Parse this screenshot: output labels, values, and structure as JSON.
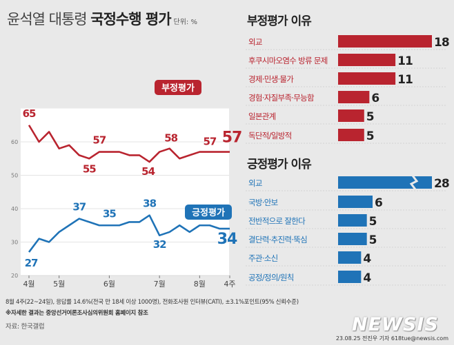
{
  "title": {
    "normal": "윤석열 대통령",
    "bold": "국정수행 평가",
    "unit": "단위: %"
  },
  "chart_data": [
    {
      "type": "line",
      "title": "윤석열 대통령 국정수행 평가",
      "unit": "단위: %",
      "ylim": [
        20,
        70
      ],
      "yticks": [
        20,
        30,
        40,
        50,
        60
      ],
      "x_tick_labels": [
        "4월",
        "5월",
        "6월",
        "7월",
        "8월",
        "4주"
      ],
      "x_tick_index": [
        0,
        3,
        8,
        13,
        17,
        20
      ],
      "series": [
        {
          "name": "부정평가",
          "color": "#b9242f",
          "values": [
            65,
            60,
            63,
            58,
            59,
            56,
            55,
            57,
            57,
            57,
            56,
            56,
            54,
            57,
            58,
            55,
            56,
            57,
            57,
            57,
            57
          ],
          "labels": [
            [
              0,
              "65"
            ],
            [
              6,
              "55"
            ],
            [
              7,
              "57"
            ],
            [
              12,
              "54"
            ],
            [
              14,
              "58"
            ],
            [
              18,
              "57"
            ],
            [
              20,
              "57"
            ]
          ]
        },
        {
          "name": "긍정평가",
          "color": "#1f73b7",
          "values": [
            27,
            31,
            30,
            33,
            35,
            37,
            36,
            35,
            35,
            35,
            36,
            36,
            38,
            32,
            33,
            35,
            33,
            35,
            35,
            34,
            34
          ],
          "labels": [
            [
              0,
              "27"
            ],
            [
              5,
              "37"
            ],
            [
              8,
              "35"
            ],
            [
              12,
              "38"
            ],
            [
              13,
              "32"
            ],
            [
              20,
              "34"
            ]
          ]
        }
      ]
    },
    {
      "type": "bar",
      "title": "부정평가 이유",
      "color": "#b9242f",
      "categories": [
        "외교",
        "후쿠시마오염수 방류 문제",
        "경제·민생·물가",
        "경험·자질부족·무능함",
        "일본관계",
        "독단적/일방적"
      ],
      "values": [
        18,
        11,
        11,
        6,
        5,
        5
      ]
    },
    {
      "type": "bar",
      "title": "긍정평가 이유",
      "color": "#1f73b7",
      "categories": [
        "외교",
        "국방·안보",
        "전반적으로 잘한다",
        "결단력·추진력·뚝심",
        "주관·소신",
        "공정/정의/원칙"
      ],
      "values": [
        28,
        6,
        5,
        5,
        4,
        4
      ]
    }
  ],
  "footnotes": {
    "survey": "8월 4주(22~24일), 응답률 14.6%(전국 만 18세 이상 1000명), 전화조사원 인터뷰(CATI), ±3.1%포인트(95% 신뢰수준)",
    "note": "※자세한 결과는 중앙선거여론조사심의위원회 홈페이지 참조",
    "source": "자료: 한국갤럽"
  },
  "logo": "NEWSIS",
  "credit": "23.08.25 전진우 기자 618tue@newsis.com"
}
